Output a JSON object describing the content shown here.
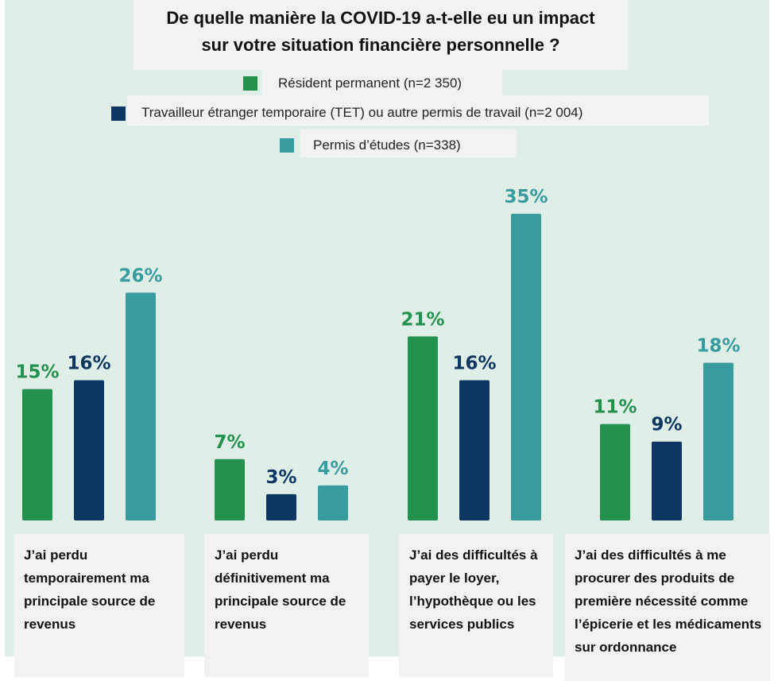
{
  "chart_data": {
    "type": "bar",
    "title_line1": "De quelle manière la COVID-19 a-t-elle eu un impact",
    "title_line2": "sur votre situation financière personnelle ?",
    "categories": [
      "J’ai perdu temporairement ma principale source de revenus",
      "J’ai perdu définitivement ma principale source de revenus",
      "J’ai des difficultés à payer le loyer, l’hypothèque ou les services publics",
      "J’ai des difficultés à me procurer des produits de première nécessité comme l’épicerie et les médicaments sur ordonnance"
    ],
    "series": [
      {
        "name": "Résident permanent (n=2 350)",
        "color": "#24924f",
        "label_color": "#24924f",
        "values": [
          15,
          7,
          21,
          11
        ]
      },
      {
        "name": "Travailleur étranger temporaire (TET) ou autre permis de travail (n=2 004)",
        "color": "#0b3762",
        "label_color": "#0b3762",
        "values": [
          16,
          3,
          16,
          9
        ]
      },
      {
        "name": "Permis d’études (n=338)",
        "color": "#389c9f",
        "label_color": "#389c9f",
        "values": [
          26,
          4,
          35,
          18
        ]
      }
    ],
    "value_suffix": "%",
    "ylim": [
      0,
      35
    ],
    "grid": false,
    "legend_position": "top-center"
  }
}
